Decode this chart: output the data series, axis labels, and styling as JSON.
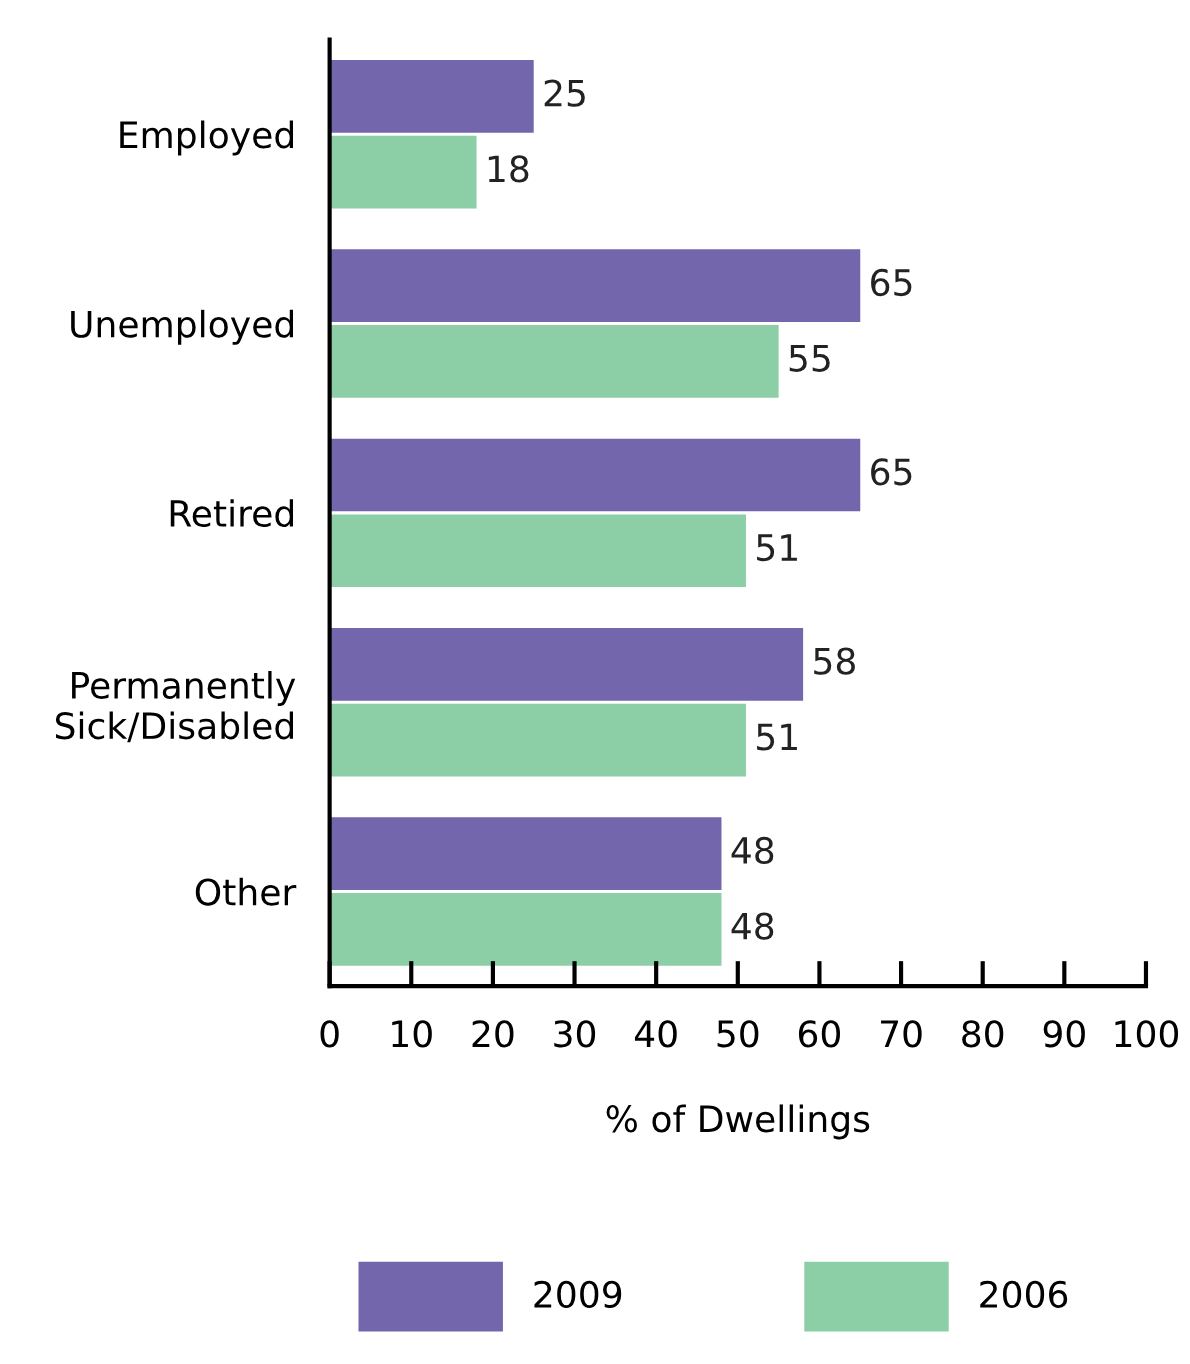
{
  "chart_data": {
    "type": "bar",
    "orientation": "horizontal",
    "categories": [
      "Employed",
      "Unemployed",
      "Retired",
      "Permanently\nSick/Disabled",
      "Other"
    ],
    "series": [
      {
        "name": "2009",
        "color": "#7366ad",
        "values": [
          25,
          65,
          65,
          58,
          48
        ]
      },
      {
        "name": "2006",
        "color": "#8ccfa6",
        "values": [
          18,
          55,
          51,
          51,
          48
        ]
      }
    ],
    "xlabel": "% of Dwellings",
    "xlim": [
      0,
      100
    ],
    "xticks": [
      0,
      10,
      20,
      30,
      40,
      50,
      60,
      70,
      80,
      90,
      100
    ],
    "data_labels": true,
    "grid": false,
    "legend": "bottom"
  }
}
